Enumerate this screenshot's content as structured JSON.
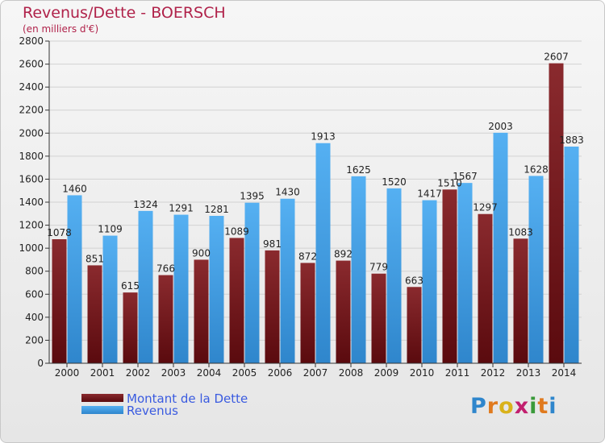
{
  "title": "Revenus/Dette - BOERSCH",
  "subtitle": "(en milliers d'€)",
  "colors": {
    "dette": "#6e1418",
    "revenus": "#44a0e8",
    "title": "#b0224a",
    "legend_text": "#3a5be0"
  },
  "legend": {
    "dette": "Montant de la Dette",
    "revenus": "Revenus"
  },
  "logo": {
    "text": "Proxiti"
  },
  "chart_data": {
    "type": "bar",
    "title": "Revenus/Dette - BOERSCH",
    "subtitle": "(en milliers d'€)",
    "categories": [
      "2000",
      "2001",
      "2002",
      "2003",
      "2004",
      "2005",
      "2006",
      "2007",
      "2008",
      "2009",
      "2010",
      "2011",
      "2012",
      "2013",
      "2014"
    ],
    "series": [
      {
        "name": "Montant de la Dette",
        "values": [
          1078,
          851,
          615,
          766,
          900,
          1089,
          981,
          872,
          892,
          779,
          663,
          1510,
          1297,
          1083,
          2607
        ]
      },
      {
        "name": "Revenus",
        "values": [
          1460,
          1109,
          1324,
          1291,
          1281,
          1395,
          1430,
          1913,
          1625,
          1520,
          1417,
          1567,
          2003,
          1628,
          1883
        ]
      }
    ],
    "yticks": [
      0,
      200,
      400,
      600,
      800,
      1000,
      1200,
      1400,
      1600,
      1800,
      2000,
      2200,
      2400,
      2600,
      2800
    ],
    "ylim": [
      0,
      2800
    ],
    "grid": true,
    "legend_position": "bottom-left"
  }
}
